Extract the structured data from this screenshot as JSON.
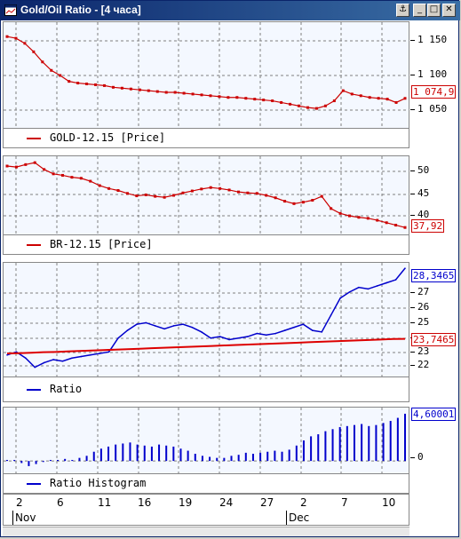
{
  "window": {
    "title": "Gold/Oil Ratio - [4 часа]",
    "icon": "chart-window-icon",
    "controls": [
      "anchor-icon",
      "minimize-icon",
      "restore-icon",
      "close-icon"
    ]
  },
  "colors": {
    "gold": "#cc0000",
    "brent": "#cc0000",
    "ratio": "#0000cc",
    "ratio_ma": "#dd0000",
    "histogram": "#0000cc"
  },
  "panels": {
    "gold": {
      "legend": "GOLD-12.15 [Price]",
      "ticks": [
        "1 150",
        "1 100",
        "1 050"
      ],
      "last_label": "1 074,9"
    },
    "brent": {
      "legend": "BR-12.15 [Price]",
      "ticks": [
        "50",
        "45",
        "40"
      ],
      "last_label": "37,92"
    },
    "ratio": {
      "legend": "Ratio",
      "ticks": [
        "27",
        "26",
        "25",
        "24",
        "23",
        "22"
      ],
      "last_label": "28,3465",
      "ma_label": "23,7465"
    },
    "histogram": {
      "legend": "Ratio Histogram",
      "ticks": [
        "0"
      ],
      "last_label": "4,60001"
    }
  },
  "date_axis": {
    "days": [
      "2",
      "6",
      "11",
      "16",
      "19",
      "24",
      "27",
      "2",
      "7",
      "10"
    ],
    "months": [
      "Nov",
      "Dec"
    ]
  },
  "chart_data": [
    {
      "type": "line",
      "series": [
        {
          "name": "GOLD-12.15 [Price]",
          "values": [
            1148,
            1146,
            1140,
            1130,
            1118,
            1108,
            1102,
            1095,
            1093,
            1092,
            1091,
            1090,
            1088,
            1087,
            1086,
            1085,
            1084,
            1083,
            1082,
            1082,
            1081,
            1080,
            1079,
            1078,
            1077,
            1076,
            1076,
            1075,
            1074,
            1073,
            1072,
            1070,
            1068,
            1066,
            1064,
            1063,
            1066,
            1072,
            1084,
            1080,
            1078,
            1076,
            1075,
            1074,
            1070,
            1074.9
          ]
        }
      ],
      "ylim": [
        1040,
        1165
      ]
    },
    {
      "type": "line",
      "series": [
        {
          "name": "BR-12.15 [Price]",
          "values": [
            50.5,
            50.3,
            50.8,
            51.2,
            49.8,
            48.9,
            48.6,
            48.2,
            48.0,
            47.4,
            46.5,
            45.9,
            45.5,
            44.9,
            44.4,
            44.6,
            44.3,
            44.1,
            44.5,
            45.0,
            45.4,
            45.8,
            46.1,
            45.9,
            45.6,
            45.2,
            45.0,
            44.9,
            44.5,
            44.0,
            43.3,
            42.8,
            43.1,
            43.5,
            44.3,
            41.8,
            40.8,
            40.3,
            40.0,
            39.8,
            39.4,
            38.9,
            38.4,
            37.92
          ]
        }
      ],
      "ylim": [
        36.5,
        52.5
      ]
    },
    {
      "type": "line",
      "series": [
        {
          "name": "Ratio",
          "values": [
            22.7,
            22.9,
            22.5,
            21.9,
            22.2,
            22.4,
            22.3,
            22.5,
            22.6,
            22.7,
            22.8,
            22.9,
            23.8,
            24.3,
            24.7,
            24.8,
            24.6,
            24.4,
            24.6,
            24.7,
            24.5,
            24.2,
            23.8,
            23.9,
            23.7,
            23.8,
            23.9,
            24.1,
            24.0,
            24.1,
            24.3,
            24.5,
            24.7,
            24.3,
            24.2,
            25.3,
            26.4,
            26.8,
            27.1,
            27.0,
            27.2,
            27.4,
            27.6,
            28.3465
          ]
        },
        {
          "name": "",
          "values": [
            22.8,
            22.82,
            22.85,
            22.88,
            22.9,
            22.93,
            22.96,
            22.99,
            23.02,
            23.05,
            23.08,
            23.11,
            23.14,
            23.17,
            23.2,
            23.23,
            23.26,
            23.29,
            23.32,
            23.35,
            23.38,
            23.41,
            23.44,
            23.47,
            23.5,
            23.53,
            23.56,
            23.59,
            23.62,
            23.65,
            23.68,
            23.71,
            23.74,
            23.7465
          ]
        }
      ],
      "ylim": [
        21.3,
        28.7
      ]
    },
    {
      "type": "bar",
      "series": [
        {
          "name": "Ratio Histogram",
          "values": [
            0.1,
            0.1,
            -0.2,
            -0.5,
            -0.3,
            -0.1,
            0.1,
            0.1,
            0.2,
            0.1,
            0.3,
            0.5,
            0.9,
            1.2,
            1.4,
            1.6,
            1.7,
            1.8,
            1.6,
            1.5,
            1.4,
            1.6,
            1.5,
            1.4,
            1.2,
            1.0,
            0.7,
            0.5,
            0.4,
            0.3,
            0.3,
            0.5,
            0.6,
            0.8,
            0.7,
            0.8,
            0.9,
            1.0,
            0.9,
            1.1,
            1.5,
            2.0,
            2.4,
            2.6,
            2.9,
            3.1,
            3.3,
            3.4,
            3.5,
            3.6,
            3.4,
            3.5,
            3.7,
            3.9,
            4.2,
            4.60001
          ]
        }
      ],
      "ylim": [
        -1.2,
        5.2
      ]
    }
  ]
}
